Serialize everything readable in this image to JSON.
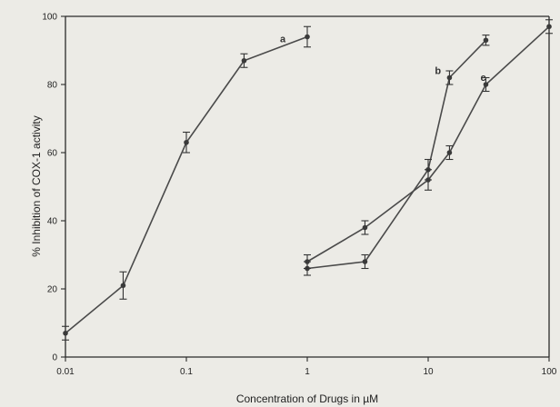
{
  "chart_data": {
    "type": "line",
    "x_scale": "log",
    "xlabel": "Concentration of Drugs in µM",
    "ylabel": "% Inhibition of COX-1 activity",
    "xlim": [
      0.01,
      100
    ],
    "ylim": [
      0,
      100
    ],
    "x_ticks": [
      0.01,
      0.1,
      1,
      10,
      100
    ],
    "x_tick_labels": [
      "0.01",
      "0.1",
      "1",
      "10",
      "100"
    ],
    "y_ticks": [
      0,
      20,
      40,
      60,
      80,
      100
    ],
    "y_tick_labels": [
      "0",
      "20",
      "40",
      "60",
      "80",
      "100"
    ],
    "grid": false,
    "series": [
      {
        "label": "a",
        "x": [
          0.01,
          0.03,
          0.1,
          0.3,
          1
        ],
        "y": [
          7,
          21,
          63,
          87,
          94
        ],
        "err": [
          2,
          4,
          3,
          2,
          3
        ]
      },
      {
        "label": "b",
        "x": [
          1,
          3,
          10,
          15,
          30
        ],
        "y": [
          26,
          28,
          55,
          82,
          93
        ],
        "err": [
          2,
          2,
          3,
          2,
          1.5
        ]
      },
      {
        "label": "c",
        "x": [
          1,
          3,
          10,
          15,
          30,
          100
        ],
        "y": [
          28,
          38,
          52,
          60,
          80,
          97
        ],
        "err": [
          2,
          2,
          3,
          2,
          2,
          2
        ]
      }
    ]
  }
}
